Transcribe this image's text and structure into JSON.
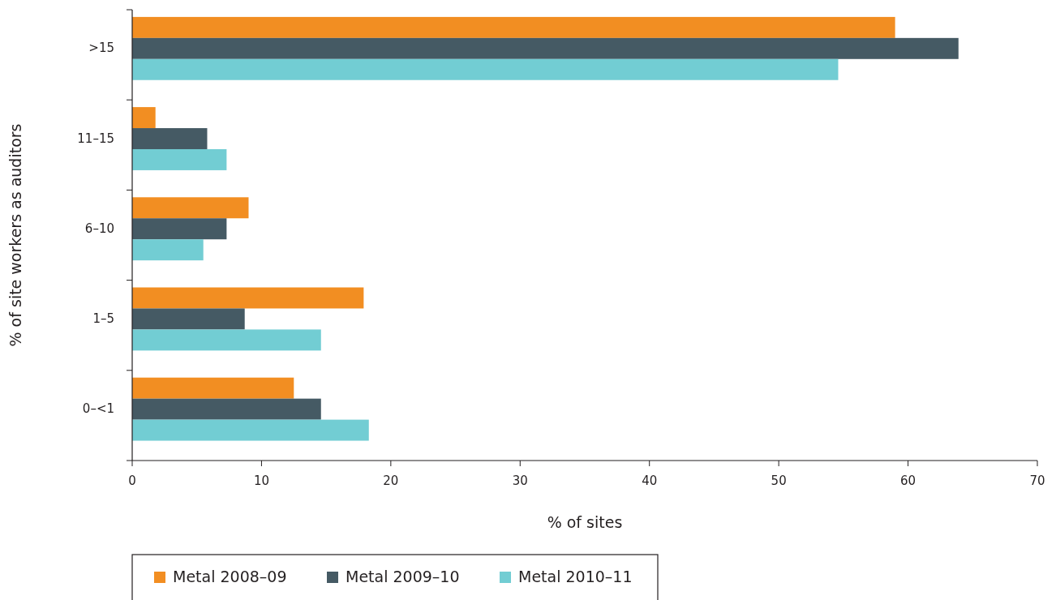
{
  "chart_data": {
    "type": "bar",
    "orientation": "horizontal",
    "xlabel": "% of sites",
    "ylabel": "% of site workers as auditors",
    "categories": [
      ">15",
      "11–15",
      "6–10",
      "1–5",
      "0–<1"
    ],
    "series": [
      {
        "name": "Metal 2008–09",
        "color": "#f28e22",
        "values": [
          59.0,
          1.8,
          9.0,
          17.9,
          12.5
        ]
      },
      {
        "name": "Metal 2009–10",
        "color": "#455a64",
        "values": [
          63.9,
          5.8,
          7.3,
          8.7,
          14.6
        ]
      },
      {
        "name": "Metal 2010–11",
        "color": "#72cdd3",
        "values": [
          54.6,
          7.3,
          5.5,
          14.6,
          18.3
        ]
      }
    ],
    "xlim": [
      0,
      70
    ],
    "xticks": [
      0,
      10,
      20,
      30,
      40,
      50,
      60,
      70
    ],
    "grid": false,
    "legend": "bottom"
  }
}
